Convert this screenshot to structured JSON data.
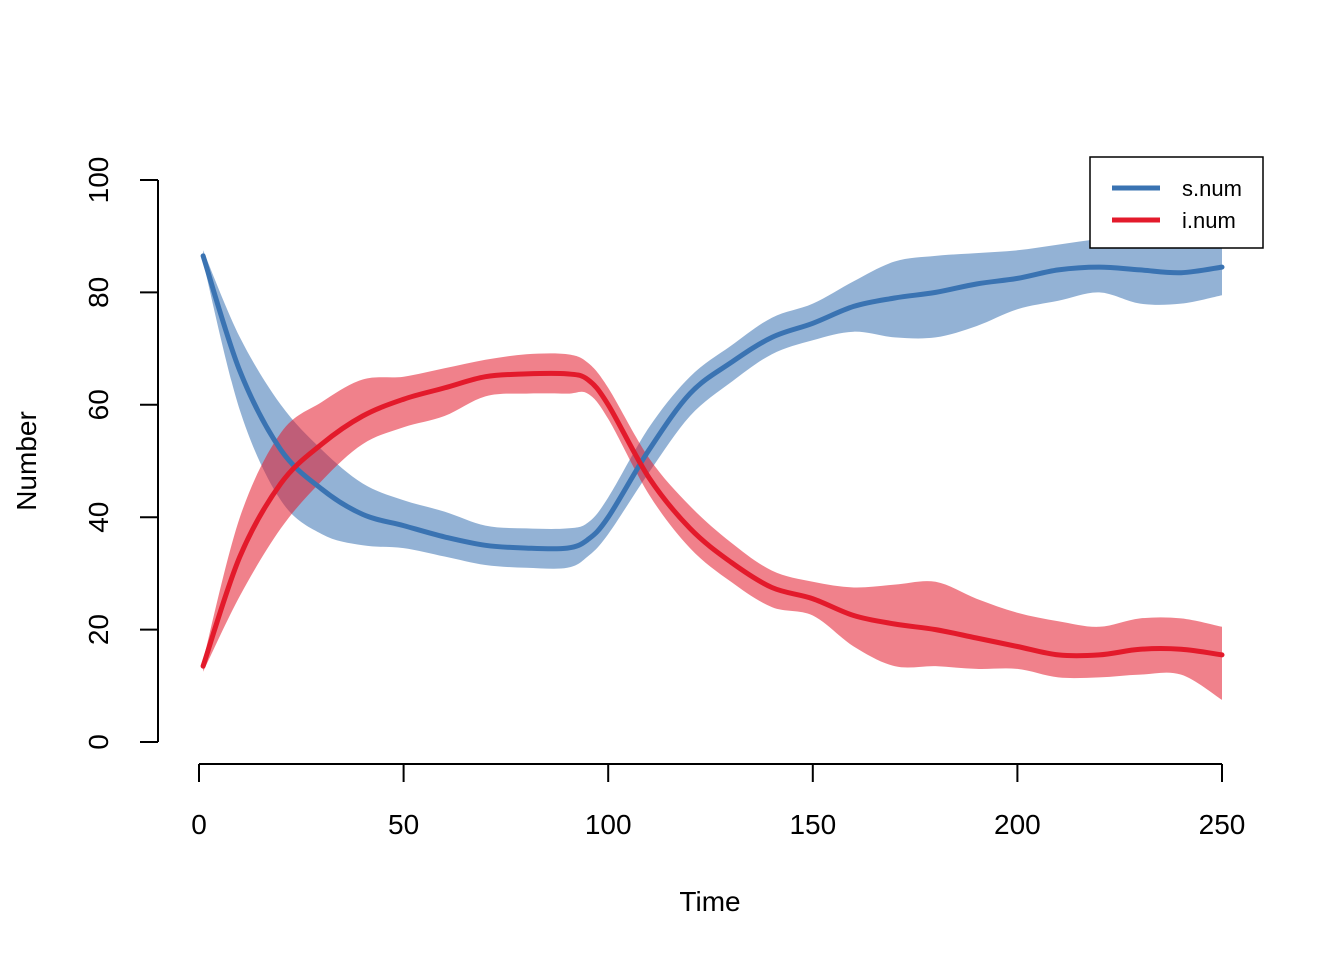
{
  "chart_data": {
    "type": "line",
    "title": "",
    "xlabel": "Time",
    "ylabel": "Number",
    "xlim": [
      0,
      250
    ],
    "ylim": [
      0,
      100
    ],
    "xticks": [
      0,
      50,
      100,
      150,
      200,
      250
    ],
    "yticks": [
      0,
      20,
      40,
      60,
      80,
      100
    ],
    "grid": false,
    "legend_position": "top-right",
    "series": [
      {
        "name": "s.num",
        "color": "#3A73B2",
        "band_color": "#3A73B2",
        "x": [
          1,
          10,
          20,
          30,
          40,
          50,
          60,
          70,
          80,
          90,
          95,
          100,
          110,
          120,
          130,
          140,
          150,
          160,
          170,
          180,
          190,
          200,
          210,
          220,
          230,
          240,
          250
        ],
        "y": [
          86.5,
          66,
          52,
          45,
          40.5,
          38.5,
          36.5,
          35,
          34.5,
          34.5,
          36,
          40,
          52,
          62,
          67.5,
          72,
          74.5,
          77.5,
          79,
          80,
          81.5,
          82.5,
          84,
          84.5,
          84,
          83.5,
          84.5
        ],
        "lower": [
          85.5,
          59,
          43,
          37,
          35,
          34.5,
          33,
          31.5,
          31,
          31,
          33,
          37,
          48,
          58,
          64,
          69,
          71.5,
          73,
          72,
          72,
          74,
          77,
          78.5,
          80,
          78,
          78,
          79.5
        ],
        "upper": [
          87.5,
          72,
          60,
          52,
          46,
          43,
          41,
          38.5,
          38,
          38,
          39,
          43.5,
          56,
          65,
          70.5,
          75.5,
          78,
          82,
          85.5,
          86.5,
          87,
          87.5,
          88.5,
          89.5,
          90,
          90.5,
          89.5
        ]
      },
      {
        "name": "i.num",
        "color": "#E31A2B",
        "band_color": "#E31A2B",
        "x": [
          1,
          10,
          20,
          30,
          40,
          50,
          60,
          70,
          80,
          90,
          95,
          100,
          110,
          120,
          130,
          140,
          150,
          160,
          170,
          180,
          190,
          200,
          210,
          220,
          230,
          240,
          250
        ],
        "y": [
          13.5,
          33,
          46,
          53,
          58,
          61,
          63,
          65,
          65.5,
          65.5,
          64.5,
          60,
          47,
          38,
          32,
          27.5,
          25.5,
          22.5,
          21,
          20,
          18.5,
          17,
          15.5,
          15.5,
          16.5,
          16.5,
          15.5
        ],
        "lower": [
          12.5,
          26,
          38,
          46.5,
          53,
          56,
          58,
          61.5,
          62,
          62,
          62,
          57.5,
          44,
          34.5,
          28.5,
          24,
          22.5,
          17,
          13.5,
          13.5,
          13,
          13,
          11.5,
          11.5,
          12,
          12,
          7.5
        ],
        "upper": [
          14.5,
          40,
          55,
          60.5,
          64.5,
          65,
          66.5,
          68,
          69,
          69,
          67.5,
          63,
          50.5,
          42,
          35.5,
          30.5,
          28.5,
          27.5,
          28,
          28.5,
          25.5,
          23,
          21.5,
          20.5,
          22,
          22,
          20.5
        ]
      }
    ]
  }
}
